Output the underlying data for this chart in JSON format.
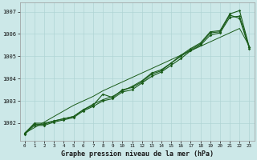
{
  "title": "Graphe pression niveau de la mer (hPa)",
  "bg_color": "#cce8e8",
  "grid_color": "#b0d4d4",
  "line_color": "#1a5c1a",
  "xlim": [
    -0.5,
    23.5
  ],
  "ylim": [
    1001.2,
    1007.4
  ],
  "yticks": [
    1002,
    1003,
    1004,
    1005,
    1006,
    1007
  ],
  "xticks": [
    0,
    1,
    2,
    3,
    4,
    5,
    6,
    7,
    8,
    9,
    10,
    11,
    12,
    13,
    14,
    15,
    16,
    17,
    18,
    19,
    20,
    21,
    22,
    23
  ],
  "hours": [
    0,
    1,
    2,
    3,
    4,
    5,
    6,
    7,
    8,
    9,
    10,
    11,
    12,
    13,
    14,
    15,
    16,
    17,
    18,
    19,
    20,
    21,
    22,
    23
  ],
  "series1": [
    1001.55,
    1001.95,
    1001.95,
    1002.1,
    1002.2,
    1002.3,
    1002.6,
    1002.8,
    1003.3,
    1003.15,
    1003.5,
    1003.6,
    1003.85,
    1004.2,
    1004.35,
    1004.7,
    1005.0,
    1005.3,
    1005.55,
    1006.05,
    1006.1,
    1006.85,
    1006.7,
    1005.35
  ],
  "series2": [
    1001.5,
    1001.9,
    1001.9,
    1002.05,
    1002.15,
    1002.25,
    1002.55,
    1002.75,
    1003.0,
    1003.1,
    1003.4,
    1003.5,
    1003.8,
    1004.1,
    1004.3,
    1004.6,
    1004.9,
    1005.25,
    1005.5,
    1005.95,
    1006.05,
    1006.75,
    1006.8,
    1005.4
  ],
  "series3": [
    1001.55,
    1002.0,
    1002.0,
    1002.1,
    1002.2,
    1002.3,
    1002.6,
    1002.85,
    1003.05,
    1003.2,
    1003.45,
    1003.65,
    1003.9,
    1004.25,
    1004.4,
    1004.7,
    1005.05,
    1005.35,
    1005.6,
    1006.1,
    1006.15,
    1006.9,
    1007.05,
    1005.4
  ],
  "series_linear": [
    1001.55,
    1001.8,
    1002.05,
    1002.3,
    1002.55,
    1002.8,
    1003.0,
    1003.2,
    1003.45,
    1003.65,
    1003.85,
    1004.05,
    1004.25,
    1004.45,
    1004.65,
    1004.85,
    1005.05,
    1005.25,
    1005.45,
    1005.65,
    1005.85,
    1006.05,
    1006.25,
    1005.45
  ]
}
